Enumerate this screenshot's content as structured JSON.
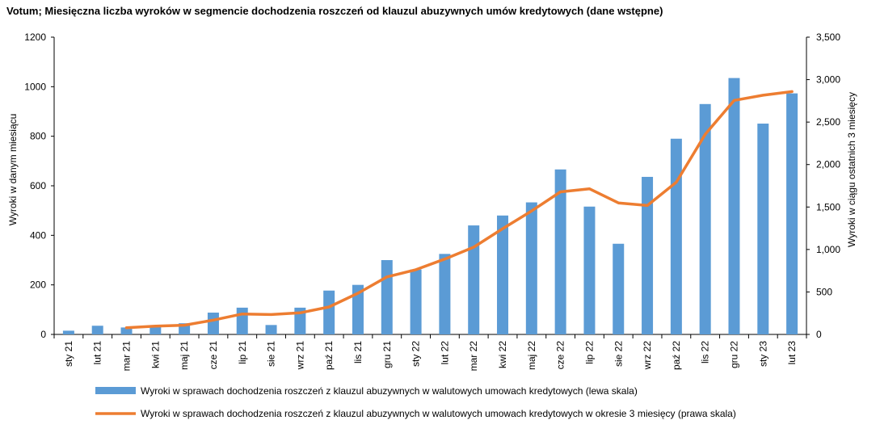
{
  "chart_data": {
    "type": "bar",
    "title": "Votum; Miesięczna liczba wyroków w segmencie dochodzenia roszczeń od klauzul abuzywnych umów kredytowych (dane wstępne)",
    "ylabel": "Wyroki w danym miesiącu",
    "y2label": "Wyroki w ciągu ostatnich 3 miesięcy",
    "ylim": [
      0,
      1200
    ],
    "y2lim": [
      0,
      3500
    ],
    "yticks": [
      "0",
      "200",
      "400",
      "600",
      "800",
      "1000",
      "1200"
    ],
    "y2ticks": [
      "0",
      "500",
      "1,000",
      "1,500",
      "2,000",
      "2,500",
      "3,000",
      "3,500"
    ],
    "categories": [
      "sty 21",
      "lut 21",
      "mar 21",
      "kwi 21",
      "maj 21",
      "cze 21",
      "lip 21",
      "sie 21",
      "wrz 21",
      "paź 21",
      "lis 21",
      "gru 21",
      "sty 22",
      "lut 22",
      "mar 22",
      "kwi 22",
      "maj 22",
      "cze 22",
      "lip 22",
      "sie 22",
      "wrz 22",
      "paź 22",
      "lis 22",
      "gru 22",
      "sty 23",
      "lut 23"
    ],
    "series": [
      {
        "name": "Wyroki w sprawach dochodzenia roszczeń z klauzul abuzywnych w walutowych umowach kredytowych (lewa skala)",
        "type": "bar",
        "axis": "left",
        "color": "#5b9bd5",
        "values": [
          15,
          35,
          28,
          35,
          45,
          88,
          108,
          38,
          108,
          177,
          200,
          300,
          262,
          325,
          440,
          480,
          533,
          666,
          516,
          366,
          636,
          790,
          930,
          1035,
          851,
          973
        ]
      },
      {
        "name": "Wyroki w sprawach dochodzenia roszczeń z klauzul abuzywnych w walutowych umowach kredytowych w okresie 3 miesięcy (prawa skala)",
        "type": "line",
        "axis": "right",
        "color": "#ed7d31",
        "values": [
          null,
          null,
          78,
          98,
          108,
          168,
          241,
          234,
          254,
          323,
          485,
          677,
          762,
          887,
          1027,
          1245,
          1453,
          1679,
          1715,
          1548,
          1518,
          1792,
          2356,
          2755,
          2816,
          2859
        ]
      }
    ],
    "legend_position": "bottom",
    "grid": false
  }
}
